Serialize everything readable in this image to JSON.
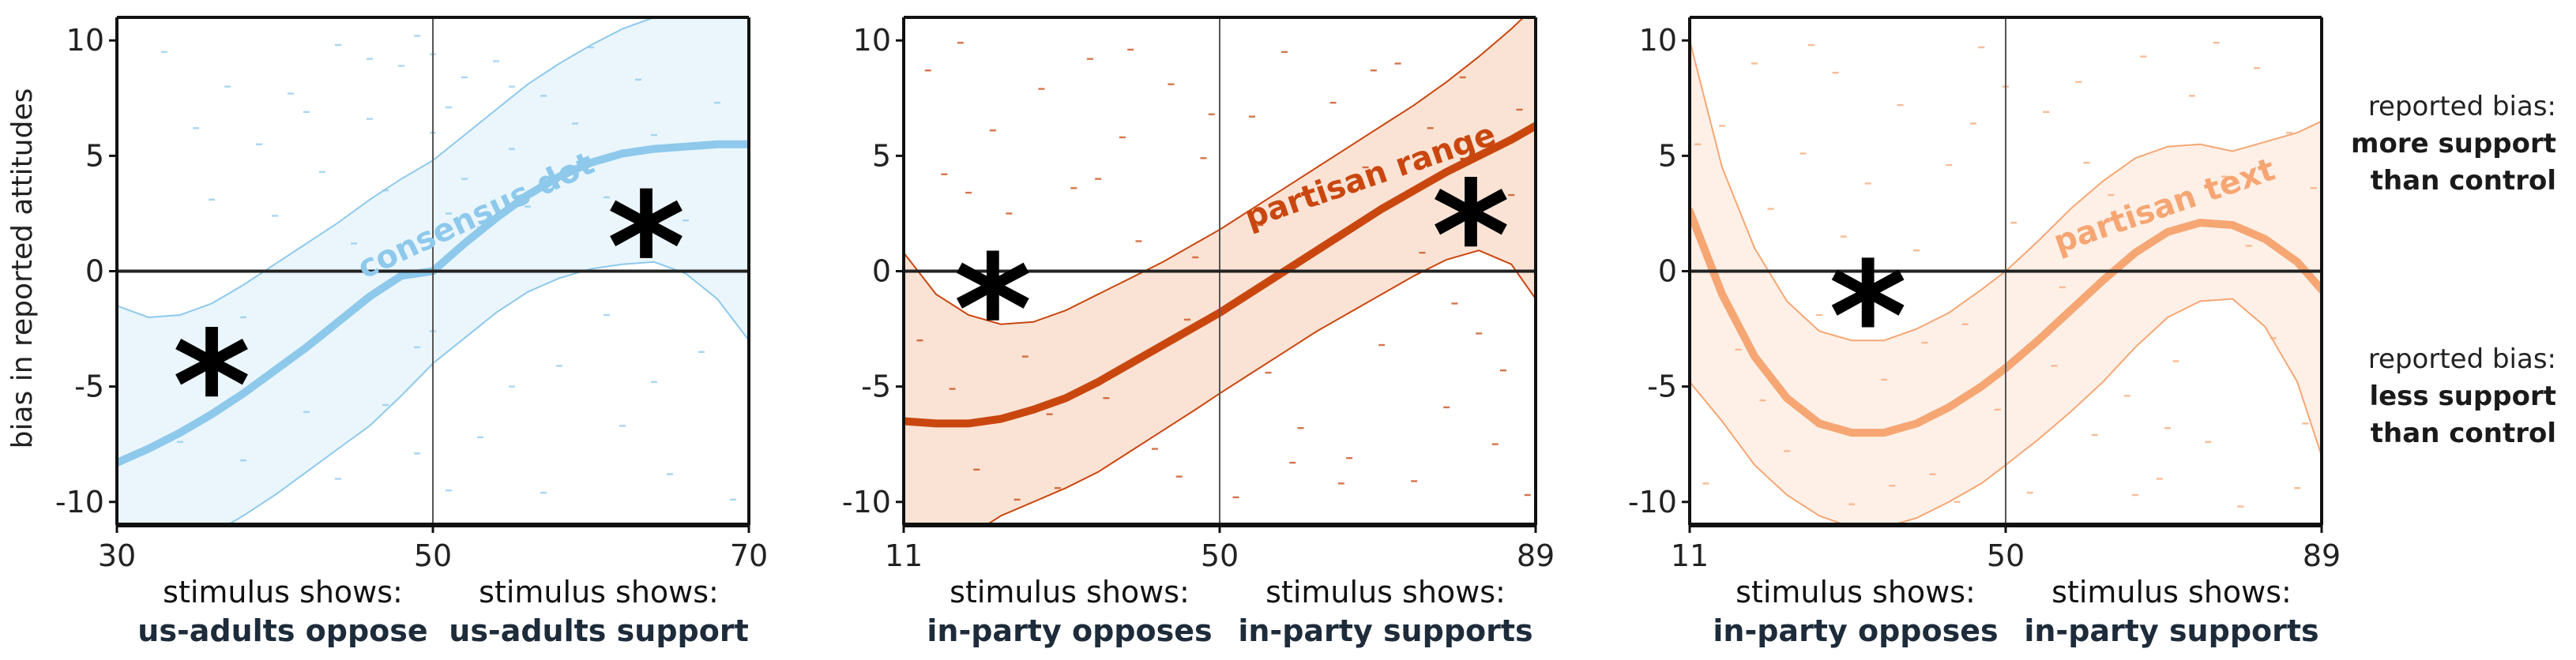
{
  "y_axis_label": "bias in reported attitudes",
  "side_labels": [
    {
      "lines": [
        "reported bias:",
        "more support",
        "than control"
      ]
    },
    {
      "lines": [
        "reported bias:",
        "less support",
        "than control"
      ]
    }
  ],
  "chart_data": [
    {
      "type": "line",
      "curve_label": "consensus dot",
      "color": "#8ec9ec",
      "band_fill": "#eaf6fc",
      "band_line": "#8ec9ec",
      "xlim": [
        30,
        70
      ],
      "ylim": [
        -11,
        11
      ],
      "xticks": [
        "30",
        "50",
        "70"
      ],
      "yticks": [
        "10",
        "5",
        "0",
        "-5",
        "-10"
      ],
      "x": [
        30,
        32,
        34,
        36,
        38,
        40,
        42,
        44,
        46,
        48,
        50,
        52,
        54,
        56,
        58,
        60,
        62,
        64,
        66,
        68,
        70
      ],
      "y": [
        -8.3,
        -7.7,
        -7.0,
        -6.2,
        -5.3,
        -4.3,
        -3.3,
        -2.2,
        -1.1,
        -0.2,
        0.0,
        1.2,
        2.3,
        3.3,
        4.1,
        4.7,
        5.1,
        5.3,
        5.4,
        5.5,
        5.5
      ],
      "upper": [
        -1.5,
        -2.0,
        -1.9,
        -1.4,
        -0.6,
        0.3,
        1.2,
        2.1,
        3.1,
        4.0,
        4.8,
        5.9,
        7.0,
        8.1,
        9.0,
        9.8,
        10.5,
        11.0,
        11.3,
        11.5,
        11.6
      ],
      "lower": [
        -11.5,
        -11.5,
        -11.5,
        -11.4,
        -10.6,
        -9.7,
        -8.7,
        -7.7,
        -6.7,
        -5.4,
        -4.0,
        -2.9,
        -1.8,
        -0.9,
        -0.3,
        0.1,
        0.3,
        0.4,
        -0.1,
        -1.2,
        -3.0
      ],
      "stars": [
        {
          "x": 36,
          "y": -4.5
        },
        {
          "x": 63.5,
          "y": 1.5
        }
      ],
      "label_pos": {
        "x": 53,
        "y": 2.0,
        "angle": -25
      },
      "points": [
        [
          33,
          9.5
        ],
        [
          35,
          6.2
        ],
        [
          36,
          3.1
        ],
        [
          37,
          8.0
        ],
        [
          38,
          -2.0
        ],
        [
          39,
          5.5
        ],
        [
          40,
          2.4
        ],
        [
          41,
          7.7
        ],
        [
          42,
          -6.1
        ],
        [
          43,
          4.3
        ],
        [
          44,
          9.8
        ],
        [
          45,
          1.2
        ],
        [
          46,
          6.6
        ],
        [
          47,
          3.5
        ],
        [
          48,
          8.9
        ],
        [
          49,
          -3.3
        ],
        [
          49,
          10.2
        ],
        [
          51,
          7.1
        ],
        [
          51,
          -9.5
        ],
        [
          52,
          4.0
        ],
        [
          52,
          8.4
        ],
        [
          53,
          1.9
        ],
        [
          53,
          -7.2
        ],
        [
          54,
          9.1
        ],
        [
          55,
          5.3
        ],
        [
          55,
          -5.0
        ],
        [
          56,
          2.8
        ],
        [
          57,
          7.6
        ],
        [
          58,
          -4.1
        ],
        [
          59,
          6.4
        ],
        [
          60,
          9.7
        ],
        [
          61,
          3.2
        ],
        [
          62,
          -6.7
        ],
        [
          63,
          8.3
        ],
        [
          64,
          5.9
        ],
        [
          65,
          -8.8
        ],
        [
          66,
          2.2
        ],
        [
          67,
          -3.5
        ],
        [
          68,
          7.3
        ],
        [
          69,
          -9.9
        ],
        [
          50,
          9.4
        ],
        [
          50,
          6.0
        ],
        [
          50,
          -2.6
        ],
        [
          49,
          -7.9
        ],
        [
          51,
          2.5
        ],
        [
          44,
          -9.0
        ],
        [
          42,
          6.9
        ],
        [
          38,
          -8.2
        ],
        [
          34,
          -7.4
        ],
        [
          47,
          -5.8
        ],
        [
          57,
          -9.6
        ],
        [
          61,
          -1.9
        ],
        [
          64,
          -4.8
        ],
        [
          55,
          8.0
        ],
        [
          46,
          9.2
        ]
      ]
    },
    {
      "type": "line",
      "curve_label": "partisan range",
      "color": "#c9470f",
      "band_fill": "#fae3d5",
      "band_line": "#c9470f",
      "xlim": [
        11,
        89
      ],
      "ylim": [
        -11,
        11
      ],
      "xticks": [
        "11",
        "50",
        "89"
      ],
      "yticks": [
        "10",
        "5",
        "0",
        "-5",
        "-10"
      ],
      "x": [
        11,
        15,
        19,
        23,
        27,
        31,
        35,
        39,
        43,
        47,
        50,
        54,
        58,
        62,
        66,
        70,
        74,
        78,
        82,
        86,
        89
      ],
      "y": [
        -6.5,
        -6.6,
        -6.6,
        -6.4,
        -6.0,
        -5.5,
        -4.8,
        -4.0,
        -3.2,
        -2.4,
        -1.8,
        -0.9,
        0.0,
        0.9,
        1.8,
        2.7,
        3.5,
        4.3,
        5.0,
        5.7,
        6.3
      ],
      "upper": [
        0.8,
        -1.0,
        -1.9,
        -2.3,
        -2.2,
        -1.7,
        -1.0,
        -0.3,
        0.4,
        1.2,
        1.8,
        2.7,
        3.6,
        4.5,
        5.4,
        6.3,
        7.2,
        8.2,
        9.3,
        10.5,
        11.5
      ],
      "lower": [
        -11.5,
        -11.5,
        -11.5,
        -10.6,
        -10.0,
        -9.4,
        -8.7,
        -7.8,
        -6.9,
        -6.0,
        -5.3,
        -4.4,
        -3.5,
        -2.6,
        -1.8,
        -1.0,
        -0.2,
        0.5,
        0.9,
        0.3,
        -1.2
      ],
      "stars": [
        {
          "x": 22,
          "y": -1.2
        },
        {
          "x": 81,
          "y": 2.0
        }
      ],
      "label_pos": {
        "x": 69,
        "y": 3.7,
        "angle": -19
      },
      "points": [
        [
          14,
          8.7
        ],
        [
          16,
          4.2
        ],
        [
          18,
          9.9
        ],
        [
          20,
          -8.6
        ],
        [
          22,
          6.1
        ],
        [
          24,
          2.5
        ],
        [
          26,
          -3.7
        ],
        [
          28,
          7.9
        ],
        [
          30,
          -9.4
        ],
        [
          32,
          3.6
        ],
        [
          34,
          9.2
        ],
        [
          36,
          -5.5
        ],
        [
          38,
          5.8
        ],
        [
          40,
          1.3
        ],
        [
          42,
          -7.7
        ],
        [
          44,
          8.1
        ],
        [
          46,
          -2.1
        ],
        [
          48,
          4.9
        ],
        [
          52,
          -9.8
        ],
        [
          54,
          6.7
        ],
        [
          56,
          -4.4
        ],
        [
          58,
          9.5
        ],
        [
          60,
          -6.8
        ],
        [
          62,
          2.9
        ],
        [
          64,
          7.3
        ],
        [
          66,
          -8.1
        ],
        [
          68,
          4.5
        ],
        [
          70,
          -3.2
        ],
        [
          72,
          9.0
        ],
        [
          74,
          -9.1
        ],
        [
          76,
          6.2
        ],
        [
          78,
          -5.9
        ],
        [
          80,
          8.4
        ],
        [
          82,
          -2.7
        ],
        [
          84,
          -7.5
        ],
        [
          86,
          3.3
        ],
        [
          88,
          -9.7
        ],
        [
          13,
          -3.0
        ],
        [
          25,
          -9.9
        ],
        [
          35,
          4.0
        ],
        [
          45,
          -8.9
        ],
        [
          55,
          2.0
        ],
        [
          65,
          -9.2
        ],
        [
          75,
          0.8
        ],
        [
          85,
          -4.3
        ],
        [
          19,
          3.4
        ],
        [
          29,
          -6.2
        ],
        [
          39,
          9.6
        ],
        [
          49,
          6.8
        ],
        [
          59,
          -8.3
        ],
        [
          69,
          8.7
        ],
        [
          79,
          -1.4
        ],
        [
          87,
          7.0
        ],
        [
          17,
          -5.1
        ],
        [
          47,
          0.6
        ]
      ]
    },
    {
      "type": "line",
      "curve_label": "partisan text",
      "color": "#f6a673",
      "band_fill": "#fef0e7",
      "band_line": "#f6a673",
      "xlim": [
        11,
        89
      ],
      "ylim": [
        -11,
        11
      ],
      "xticks": [
        "11",
        "50",
        "89"
      ],
      "yticks": [
        "10",
        "5",
        "0",
        "-5",
        "-10"
      ],
      "x": [
        11,
        15,
        19,
        23,
        27,
        31,
        35,
        39,
        43,
        47,
        50,
        54,
        58,
        62,
        66,
        70,
        74,
        78,
        82,
        86,
        89
      ],
      "y": [
        2.6,
        -1.0,
        -3.7,
        -5.5,
        -6.6,
        -7.0,
        -7.0,
        -6.6,
        -5.9,
        -5.0,
        -4.2,
        -3.0,
        -1.7,
        -0.4,
        0.8,
        1.7,
        2.1,
        2.0,
        1.4,
        0.4,
        -0.8
      ],
      "upper": [
        10.0,
        4.5,
        1.0,
        -1.3,
        -2.6,
        -3.0,
        -3.0,
        -2.5,
        -1.8,
        -0.8,
        0.0,
        1.3,
        2.7,
        3.9,
        4.9,
        5.4,
        5.5,
        5.2,
        5.6,
        6.0,
        6.5
      ],
      "lower": [
        -4.8,
        -6.5,
        -8.4,
        -9.7,
        -10.6,
        -11.1,
        -11.1,
        -10.7,
        -10.0,
        -9.2,
        -8.4,
        -7.3,
        -6.1,
        -4.8,
        -3.3,
        -2.0,
        -1.3,
        -1.2,
        -2.4,
        -4.8,
        -8.0
      ],
      "stars": [
        {
          "x": 33,
          "y": -1.5
        }
      ],
      "label_pos": {
        "x": 70,
        "y": 2.4,
        "angle": -19
      },
      "points": [
        [
          13,
          -9.2
        ],
        [
          15,
          6.3
        ],
        [
          17,
          -3.4
        ],
        [
          19,
          9.0
        ],
        [
          21,
          2.7
        ],
        [
          23,
          -7.8
        ],
        [
          25,
          5.1
        ],
        [
          27,
          -1.9
        ],
        [
          29,
          8.6
        ],
        [
          31,
          -10.1
        ],
        [
          33,
          3.8
        ],
        [
          35,
          -4.7
        ],
        [
          37,
          7.2
        ],
        [
          39,
          0.9
        ],
        [
          41,
          -8.8
        ],
        [
          43,
          4.6
        ],
        [
          45,
          -2.3
        ],
        [
          47,
          9.7
        ],
        [
          49,
          -6.0
        ],
        [
          51,
          2.1
        ],
        [
          53,
          -9.6
        ],
        [
          55,
          6.9
        ],
        [
          57,
          -0.7
        ],
        [
          59,
          8.2
        ],
        [
          61,
          -7.1
        ],
        [
          63,
          3.3
        ],
        [
          65,
          -5.4
        ],
        [
          67,
          9.3
        ],
        [
          69,
          -9.0
        ],
        [
          71,
          -3.9
        ],
        [
          73,
          7.6
        ],
        [
          75,
          -7.4
        ],
        [
          77,
          4.1
        ],
        [
          79,
          -10.2
        ],
        [
          81,
          8.8
        ],
        [
          83,
          -2.9
        ],
        [
          85,
          6.0
        ],
        [
          87,
          -6.6
        ],
        [
          12,
          5.5
        ],
        [
          26,
          9.8
        ],
        [
          36,
          -9.3
        ],
        [
          46,
          6.4
        ],
        [
          56,
          -4.1
        ],
        [
          66,
          -9.7
        ],
        [
          76,
          9.9
        ],
        [
          86,
          -9.4
        ],
        [
          20,
          -5.6
        ],
        [
          30,
          1.5
        ],
        [
          40,
          -3.1
        ],
        [
          50,
          8.0
        ],
        [
          60,
          4.7
        ],
        [
          70,
          -6.8
        ],
        [
          80,
          1.1
        ],
        [
          88,
          3.6
        ],
        [
          44,
          -10.0
        ]
      ]
    }
  ],
  "subtitles": [
    {
      "left_plain": "stimulus shows:",
      "left_bold": "us-adults oppose",
      "right_plain": "stimulus shows:",
      "right_bold": "us-adults support"
    },
    {
      "left_plain": "stimulus shows:",
      "left_bold": "in-party opposes",
      "right_plain": "stimulus shows:",
      "right_bold": "in-party supports"
    },
    {
      "left_plain": "stimulus shows:",
      "left_bold": "in-party opposes",
      "right_plain": "stimulus shows:",
      "right_bold": "in-party supports"
    }
  ]
}
